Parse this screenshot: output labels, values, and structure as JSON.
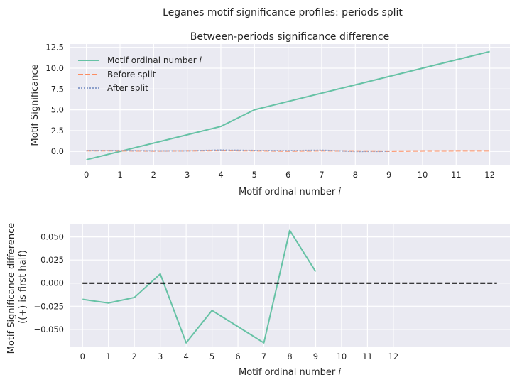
{
  "figure": {
    "suptitle": "Leganes motif significance profiles: periods split"
  },
  "colors": {
    "background": "#eaeaf2",
    "grid": "#ffffff",
    "teal": "#66c2a5",
    "orange": "#fc8d62",
    "blue": "#8da0cb",
    "black": "#000000"
  },
  "chart_data": [
    {
      "type": "line",
      "title": "Between-periods significance difference",
      "xlabel": "Motif ordinal number i",
      "ylabel": "Motif Significance",
      "xlim": [
        -0.5,
        12.6
      ],
      "ylim": [
        -1.6,
        12.9
      ],
      "xticks": [
        0,
        1,
        2,
        3,
        4,
        5,
        6,
        7,
        8,
        9,
        10,
        11,
        12
      ],
      "xtick_labels": [
        "0",
        "1",
        "2",
        "3",
        "4",
        "5",
        "6",
        "7",
        "8",
        "9",
        "10",
        "11",
        "12"
      ],
      "yticks": [
        0,
        2.5,
        5,
        7.5,
        10,
        12.5
      ],
      "ytick_labels": [
        "0.0",
        "2.5",
        "5.0",
        "7.5",
        "10.0",
        "12.5"
      ],
      "legend_position": "top-left",
      "series": [
        {
          "name": "Motif ordinal number i",
          "legend_main": "Motif ordinal number ",
          "legend_italic": "i",
          "style": "solid",
          "color_key": "teal",
          "x": [
            0,
            4,
            5,
            12
          ],
          "y": [
            -1,
            3,
            5,
            12
          ]
        },
        {
          "name": "Before split",
          "legend_main": "Before split",
          "legend_italic": "",
          "style": "dashed",
          "color_key": "orange",
          "x": [
            0,
            1,
            2,
            3,
            4,
            5,
            6,
            7,
            8,
            9,
            10,
            11,
            12
          ],
          "y": [
            0.08,
            0.08,
            0.05,
            0.07,
            0.1,
            0.08,
            0.04,
            0.08,
            0.05,
            0.03,
            0.06,
            0.07,
            0.07
          ]
        },
        {
          "name": "After split",
          "legend_main": "After split",
          "legend_italic": "",
          "style": "dotted",
          "color_key": "blue",
          "x": [
            0,
            1,
            2,
            3,
            4,
            5,
            6,
            7,
            8,
            9
          ],
          "y": [
            0.1,
            0.1,
            0.07,
            0.06,
            0.16,
            0.11,
            0.09,
            0.14,
            0.0,
            0.02
          ]
        }
      ]
    },
    {
      "type": "line",
      "title": "",
      "xlabel": "Motif ordinal number i",
      "ylabel_line1": "Motif Significance difference",
      "ylabel_line2": "((+) is first half)",
      "xlim": [
        -0.5,
        16.5
      ],
      "ylim": [
        -0.0685,
        0.0635
      ],
      "xticks": [
        0,
        1,
        2,
        3,
        4,
        5,
        6,
        7,
        8,
        9,
        10,
        11,
        12
      ],
      "xtick_labels": [
        "0",
        "1",
        "2",
        "3",
        "4",
        "5",
        "6",
        "7",
        "8",
        "9",
        "10",
        "11",
        "12"
      ],
      "yticks": [
        -0.05,
        -0.025,
        0,
        0.025,
        0.05
      ],
      "ytick_labels": [
        "−0.050",
        "−0.025",
        "0.000",
        "0.025",
        "0.050"
      ],
      "series": [
        {
          "style": "solid",
          "color_key": "teal",
          "x": [
            0,
            1,
            2,
            3,
            4,
            5,
            6,
            7,
            8,
            9
          ],
          "y": [
            -0.0175,
            -0.0215,
            -0.0155,
            0.01,
            -0.0645,
            -0.0295,
            -0.047,
            -0.0645,
            0.057,
            0.0125
          ]
        },
        {
          "style": "dashed",
          "color_key": "black",
          "x": [
            0,
            16
          ],
          "y": [
            0,
            0
          ]
        }
      ]
    }
  ]
}
